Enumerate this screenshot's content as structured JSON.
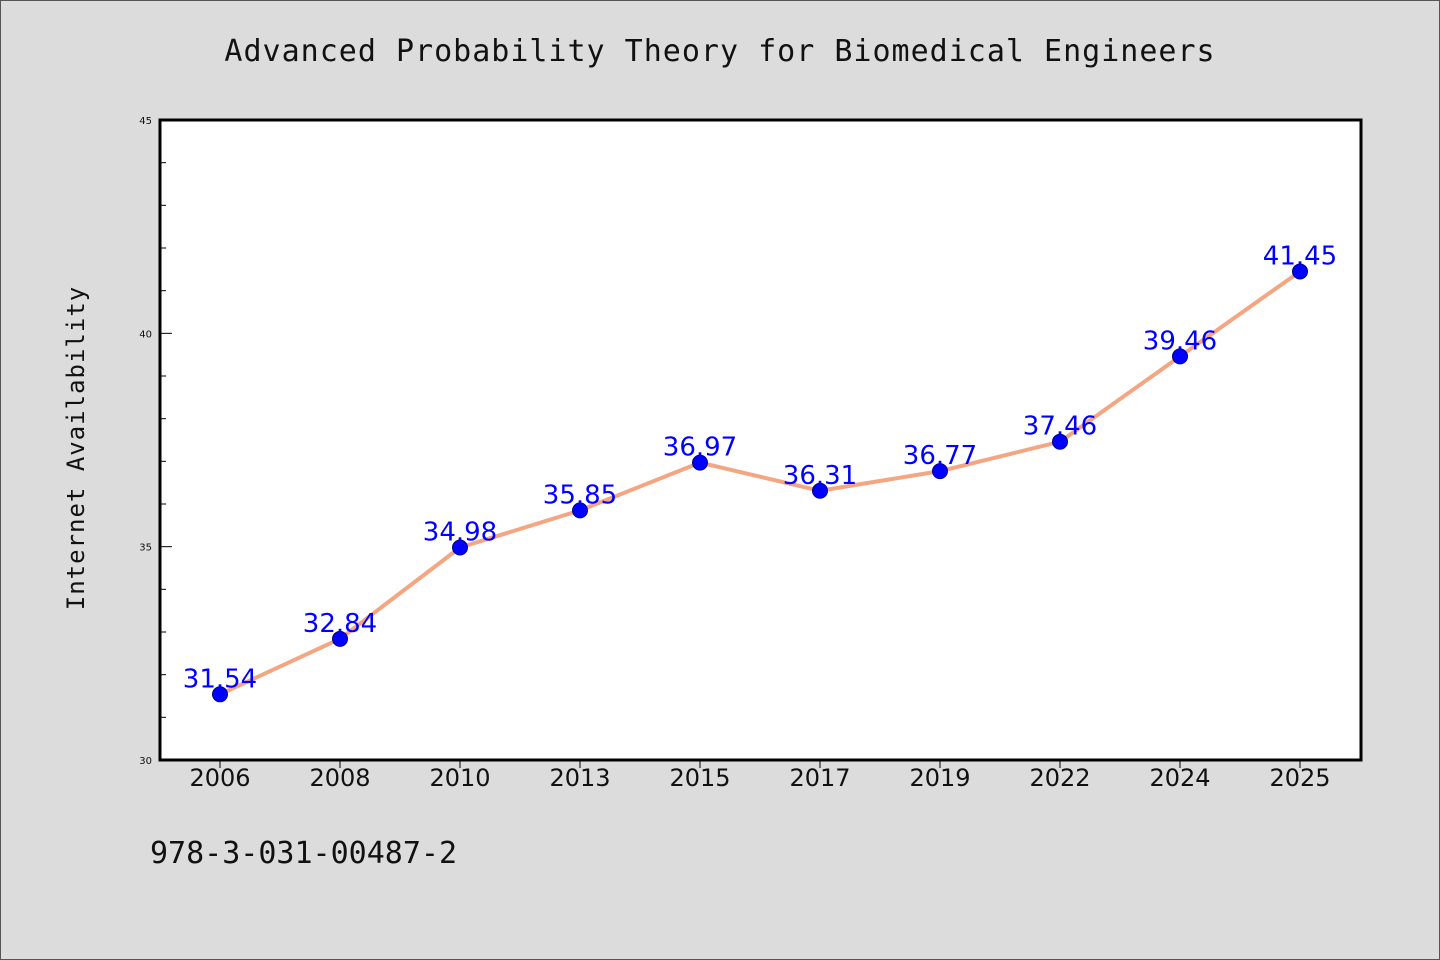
{
  "chart_data": {
    "type": "line",
    "title": "Advanced Probability Theory for Biomedical Engineers",
    "xlabel": "",
    "ylabel": "Internet Availability",
    "categories": [
      "2006",
      "2008",
      "2010",
      "2013",
      "2015",
      "2017",
      "2019",
      "2022",
      "2024",
      "2025"
    ],
    "series": [
      {
        "values": [
          31.54,
          32.84,
          34.98,
          35.85,
          36.97,
          36.31,
          36.77,
          37.46,
          39.46,
          41.45
        ],
        "labels": [
          "31.54",
          "32.84",
          "34.98",
          "35.85",
          "36.97",
          "36.31",
          "36.77",
          "37.46",
          "39.46",
          "41.45"
        ]
      }
    ],
    "ylim": [
      30,
      45
    ],
    "yticks": [
      "30",
      "35",
      "40",
      "45"
    ],
    "grid": false,
    "legend": "none",
    "colors": {
      "line": "#f4a582",
      "marker": "#0000ff",
      "label": "#0000ff",
      "plot_bg": "#ffffff",
      "page_bg": "#dcdcdc"
    }
  },
  "footer": {
    "code": "978-3-031-00487-2"
  }
}
